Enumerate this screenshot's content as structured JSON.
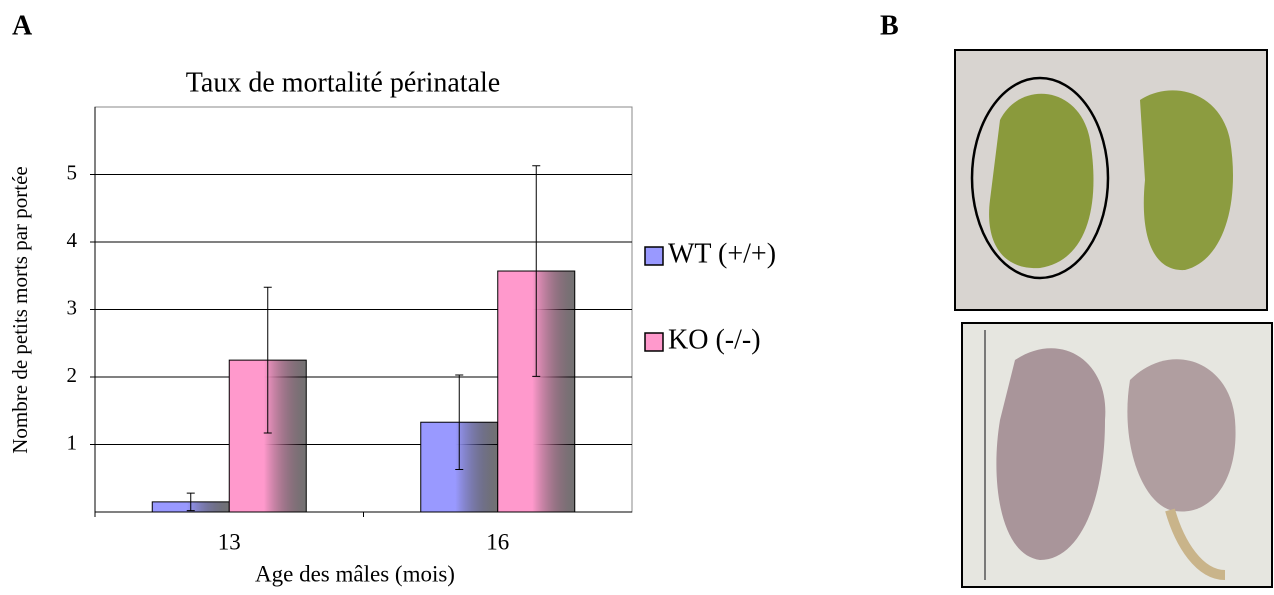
{
  "panel_labels": [
    "A",
    "B"
  ],
  "chart_data": {
    "type": "bar",
    "title": "Taux de mortalité périnatale",
    "y_label": "Nombre de petits morts par portée",
    "x_label": "Age des mâles (mois)",
    "categories": [
      "13",
      "16"
    ],
    "series": [
      {
        "name": "WT (+/+)",
        "color": "#9999ff",
        "values": [
          0.15,
          1.33
        ],
        "errors": [
          0.13,
          0.7
        ]
      },
      {
        "name": "KO (-/-)",
        "color": "#ff99cc",
        "values": [
          2.25,
          3.57
        ],
        "errors": [
          1.08,
          1.56
        ]
      }
    ],
    "ylim": [
      0,
      6
    ],
    "yticks": [
      1,
      2,
      3,
      4,
      5
    ],
    "grid": true,
    "legend": "right"
  }
}
